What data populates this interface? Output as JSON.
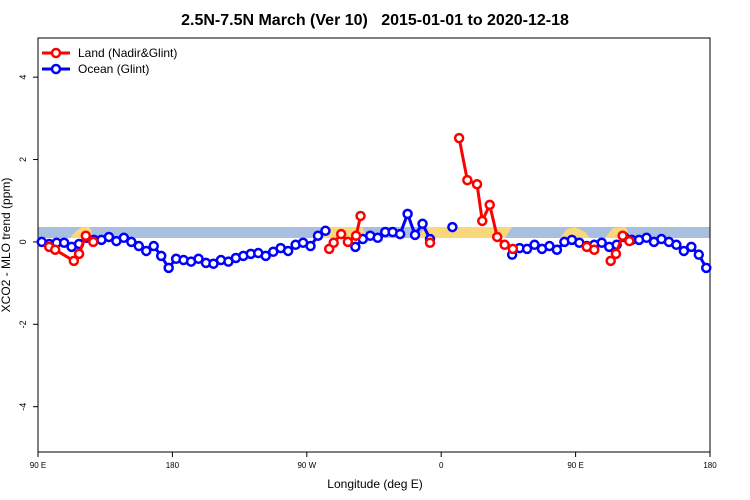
{
  "chart_data": {
    "type": "line",
    "title": "2.5N-7.5N March (Ver 10)   2015-01-01 to 2020-12-18",
    "x_label": "Longitude (deg E)",
    "y_label": "XCO2 - MLO trend (ppm)",
    "xlim": [
      90,
      540
    ],
    "ylim": [
      -5.1,
      4.95
    ],
    "xticks": [
      {
        "value": 90,
        "label": "90 E"
      },
      180,
      {
        "value": 270,
        "label": "90 W"
      },
      {
        "value": 360,
        "label": "0"
      },
      {
        "value": 450,
        "label": "90 E"
      },
      {
        "value": 540,
        "label": "180"
      }
    ],
    "yticks": [
      4,
      2,
      0,
      -2,
      -4
    ],
    "legend": "topleft",
    "series": [
      {
        "name": "Ocean (Glint)",
        "color": "#0000ff",
        "x": [
          92.5,
          97.5,
          102.5,
          107.5,
          112.5,
          117.5,
          122.5,
          127.5,
          132.5,
          137.5,
          142.5,
          147.5,
          152.5,
          157.5,
          162.5,
          167.5,
          172.5,
          177.5,
          182.5,
          187.5,
          192.5,
          197.5,
          202.5,
          207.5,
          212.5,
          217.5,
          222.5,
          227.5,
          232.5,
          237.5,
          242.5,
          247.5,
          252.5,
          257.5,
          262.5,
          267.5,
          272.5,
          277.5,
          282.5,
          287.5,
          292.5,
          297.5,
          302.5,
          307.5,
          312.5,
          317.5,
          322.5,
          327.5,
          332.5,
          337.5,
          342.5,
          347.5,
          352.5,
          357.5,
          362.5,
          367.5,
          372.5,
          377.5,
          382.5,
          387.5,
          392.5,
          397.5,
          402.5,
          407.5,
          412.5,
          417.5,
          422.5,
          427.5,
          432.5,
          437.5,
          442.5,
          447.5,
          452.5,
          457.5,
          462.5,
          467.5,
          472.5,
          477.5,
          482.5,
          487.5,
          492.5,
          497.5,
          502.5,
          507.5,
          512.5,
          517.5,
          522.5,
          527.5,
          532.5,
          537.5
        ],
        "values": [
          0,
          -0.05,
          -0.02,
          -0.02,
          -0.12,
          -0.05,
          0.1,
          0.05,
          0.05,
          0.12,
          0.02,
          0.1,
          0,
          -0.1,
          -0.22,
          -0.1,
          -0.34,
          -0.63,
          -0.41,
          -0.44,
          -0.48,
          -0.41,
          -0.51,
          -0.53,
          -0.44,
          -0.48,
          -0.39,
          -0.34,
          -0.29,
          -0.27,
          -0.34,
          -0.24,
          -0.15,
          -0.22,
          -0.07,
          -0.02,
          -0.1,
          0.15,
          0.27,
          null,
          null,
          null,
          -0.12,
          0.07,
          0.15,
          0.1,
          0.24,
          0.24,
          0.19,
          0.68,
          0.17,
          0.44,
          0.07,
          null,
          null,
          0.36,
          null,
          null,
          null,
          null,
          null,
          null,
          null,
          -0.31,
          -0.15,
          -0.17,
          -0.07,
          -0.17,
          -0.1,
          -0.19,
          0,
          0.05,
          -0.02,
          -0.1,
          -0.07,
          -0.02,
          -0.12,
          -0.07,
          0.12,
          0.05,
          0.05,
          0.1,
          0,
          0.07,
          0,
          -0.07,
          -0.22,
          -0.12,
          -0.31,
          -0.63
        ]
      },
      {
        "name": "Land (Nadir&Glint)",
        "color": "#ff0000",
        "x": [
          97.5,
          101.5,
          114,
          117.5,
          122,
          127,
          null,
          285,
          288,
          293,
          297.5,
          303,
          306,
          null,
          352.5,
          null,
          372,
          377.5,
          384,
          387.5,
          392.5,
          397.5,
          402.5,
          408,
          null,
          457.5,
          462.5,
          null,
          473.5,
          477,
          481.5,
          486
        ],
        "values": [
          -0.12,
          -0.19,
          -0.46,
          -0.29,
          0.15,
          0,
          null,
          -0.17,
          -0.02,
          0.19,
          0,
          0.15,
          0.63,
          null,
          -0.02,
          null,
          2.52,
          1.5,
          1.4,
          0.51,
          0.9,
          0.12,
          -0.07,
          -0.17,
          null,
          -0.12,
          -0.19,
          null,
          -0.46,
          -0.29,
          0.15,
          0.02
        ]
      }
    ]
  }
}
